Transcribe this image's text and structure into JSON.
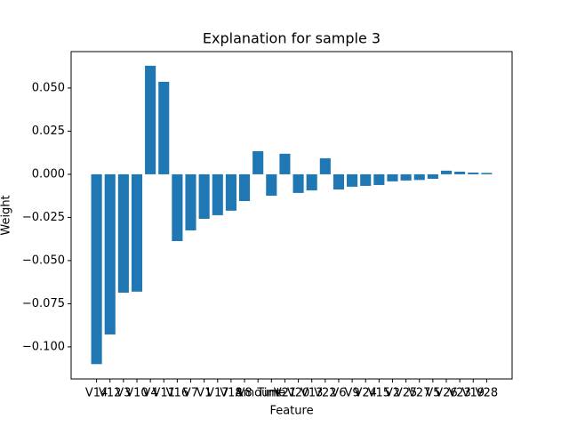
{
  "chart_data": {
    "type": "bar",
    "title": "Explanation for sample 3",
    "xlabel": "Feature",
    "ylabel": "Weight",
    "color": "#1f77b4",
    "categories": [
      "V14",
      "V12",
      "V3",
      "V10",
      "V4",
      "V11",
      "V16",
      "V7",
      "V1",
      "V17",
      "V18",
      "V8",
      "Amount",
      "Time",
      "V21",
      "V20",
      "V13",
      "V22",
      "V6",
      "V9",
      "V24",
      "V15",
      "V2",
      "V25",
      "V27",
      "V5",
      "V26",
      "V23",
      "V19",
      "V28"
    ],
    "values": [
      -0.11,
      -0.0928,
      -0.0686,
      -0.068,
      0.0629,
      0.0536,
      -0.0387,
      -0.0325,
      -0.0258,
      -0.0237,
      -0.0211,
      -0.0155,
      0.0134,
      -0.0124,
      0.0119,
      -0.0108,
      -0.0093,
      0.0093,
      -0.0088,
      -0.0072,
      -0.0067,
      -0.0062,
      -0.0041,
      -0.0036,
      -0.0033,
      -0.0026,
      0.0021,
      0.0015,
      0.001,
      0.0008
    ],
    "ylim": [
      -0.1186,
      0.0711
    ],
    "yticks": [
      {
        "value": -0.1,
        "label": "−0.100"
      },
      {
        "value": -0.075,
        "label": "−0.075"
      },
      {
        "value": -0.05,
        "label": "−0.050"
      },
      {
        "value": -0.025,
        "label": "−0.025"
      },
      {
        "value": 0,
        "label": "0.000"
      },
      {
        "value": 0.025,
        "label": "0.025"
      },
      {
        "value": 0.05,
        "label": "0.050"
      }
    ],
    "grid": false
  }
}
